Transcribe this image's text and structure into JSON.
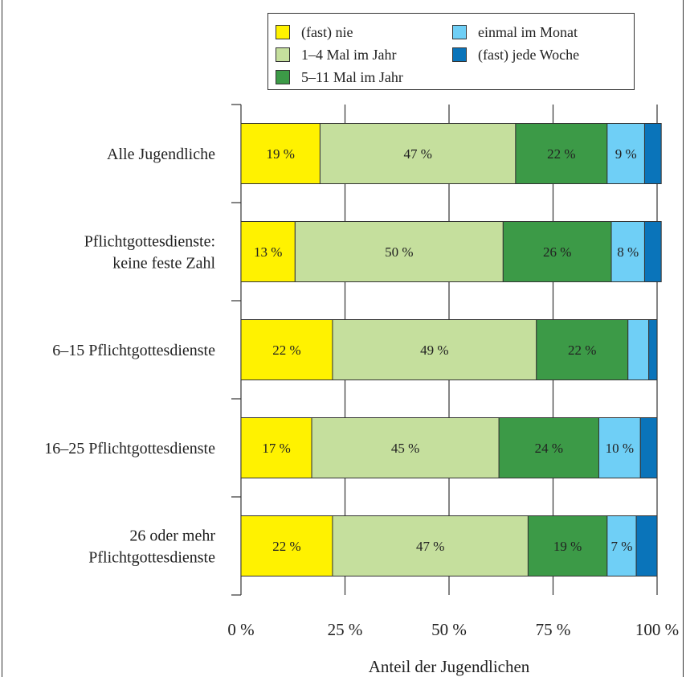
{
  "chart_data": {
    "type": "bar",
    "orientation": "horizontal",
    "stacked": true,
    "categories": [
      [
        "Alle Jugendliche"
      ],
      [
        "Pflichtgottesdienste:",
        "keine feste Zahl"
      ],
      [
        "6–15 Pflichtgottesdienste"
      ],
      [
        "16–25 Pflichtgottesdienste"
      ],
      [
        "26 oder mehr",
        "Pflichtgottesdienste"
      ]
    ],
    "series": [
      {
        "name": "(fast) nie",
        "color": "#fff200",
        "values": [
          19,
          13,
          22,
          17,
          22
        ],
        "labels": [
          "19 %",
          "13 %",
          "22 %",
          "17 %",
          "22 %"
        ]
      },
      {
        "name": "1–4 Mal im Jahr",
        "color": "#c5df9d",
        "values": [
          47,
          50,
          49,
          45,
          47
        ],
        "labels": [
          "47 %",
          "50 %",
          "49 %",
          "45 %",
          "47 %"
        ]
      },
      {
        "name": "5–11 Mal im Jahr",
        "color": "#3c9a47",
        "values": [
          22,
          26,
          22,
          24,
          19
        ],
        "labels": [
          "22 %",
          "26 %",
          "22 %",
          "24 %",
          "19 %"
        ]
      },
      {
        "name": "einmal im Monat",
        "color": "#6fcff6",
        "values": [
          9,
          8,
          5,
          10,
          7
        ],
        "labels": [
          "9 %",
          "8 %",
          "",
          "10 %",
          "7 %"
        ]
      },
      {
        "name": "(fast) jede Woche",
        "color": "#0a74ba",
        "values": [
          4,
          4,
          2,
          4,
          5
        ],
        "labels": [
          "",
          "",
          "",
          "",
          ""
        ]
      }
    ],
    "xlim": [
      0,
      100
    ],
    "x_ticks": [
      0,
      25,
      50,
      75,
      100
    ],
    "x_tick_labels": [
      "0 %",
      "25 %",
      "50 %",
      "75 %",
      "100 %"
    ],
    "xlabel": "Anteil der Jugendlichen",
    "ylabel": "",
    "grid": "vertical",
    "legend_position": "top"
  }
}
